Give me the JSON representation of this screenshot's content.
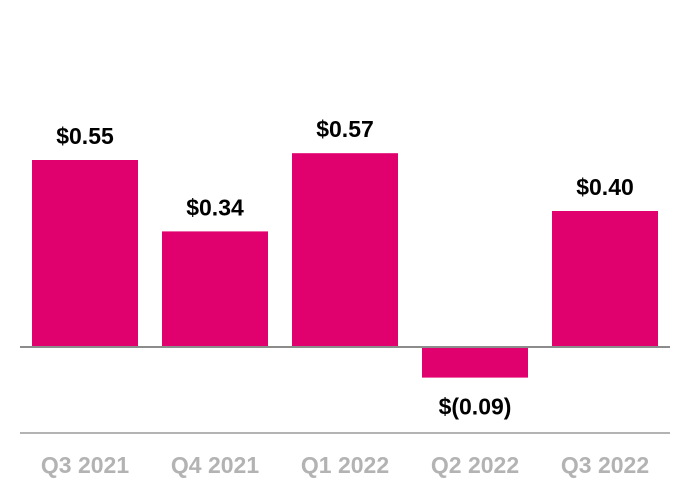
{
  "chart_data": {
    "type": "bar",
    "categories": [
      "Q3 2021",
      "Q4 2021",
      "Q1 2022",
      "Q2 2022",
      "Q3 2022"
    ],
    "values": [
      0.55,
      0.34,
      0.57,
      -0.09,
      0.4
    ],
    "data_labels": [
      "$0.55",
      "$0.34",
      "$0.57",
      "$(0.09)",
      "$0.40"
    ],
    "title": "",
    "xlabel": "",
    "ylabel": "",
    "ylim": [
      -0.3,
      0.8
    ],
    "grid": false,
    "legend": "none",
    "colors": {
      "bar": "#e0006e",
      "baseline": "#8c8c8c",
      "category_text": "#b3b3b3",
      "label_text": "#000000"
    }
  }
}
